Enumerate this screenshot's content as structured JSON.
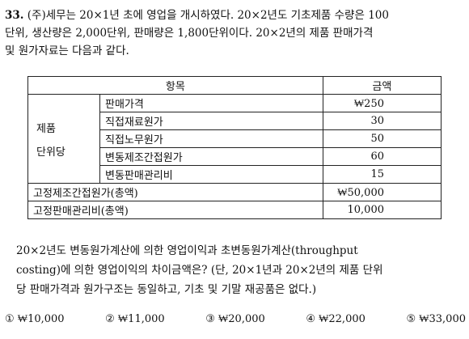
{
  "question": {
    "number": "33.",
    "line1": "(주)세무는 20×1년 초에 영업을 개시하였다. 20×2년도 기초제품 수량은 100",
    "line2": "단위, 생산량은 2,000단위, 판매량은 1,800단위이다. 20×2년의 제품 판매가격",
    "line3": "및 원가자료는 다음과 같다."
  },
  "table": {
    "header_item": "항목",
    "header_amount": "금액",
    "group_label_line1": "제품",
    "group_label_line2": "단위당",
    "unit_rows": [
      {
        "label": "판매가격",
        "amount": "₩250"
      },
      {
        "label": "직접재료원가",
        "amount": "30"
      },
      {
        "label": "직접노무원가",
        "amount": "50"
      },
      {
        "label": "변동제조간접원가",
        "amount": "60"
      },
      {
        "label": "변동판매관리비",
        "amount": "15"
      }
    ],
    "total_rows": [
      {
        "label": "고정제조간접원가(총액)",
        "amount": "₩50,000"
      },
      {
        "label": "고정판매관리비(총액)",
        "amount": "10,000"
      }
    ]
  },
  "prompt": {
    "line1": "20×2년도 변동원가계산에 의한 영업이익과 초변동원가계산(throughput",
    "line2": "costing)에 의한 영업이익의 차이금액은? (단, 20×1년과 20×2년의 제품 단위",
    "line3": "당 판매가격과 원가구조는 동일하고, 기초 및 기말 재공품은 없다.)"
  },
  "options": [
    {
      "marker": "①",
      "value": "₩10,000"
    },
    {
      "marker": "②",
      "value": "₩11,000"
    },
    {
      "marker": "③",
      "value": "₩20,000"
    },
    {
      "marker": "④",
      "value": "₩22,000"
    },
    {
      "marker": "⑤",
      "value": "₩33,000"
    }
  ]
}
